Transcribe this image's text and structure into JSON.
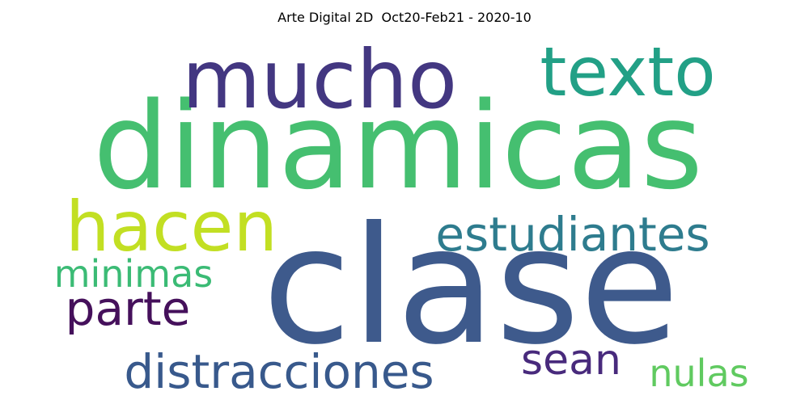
{
  "chart_data": {
    "type": "wordcloud",
    "title": "Arte Digital 2D  Oct20-Feb21 - 2020-10",
    "words": [
      {
        "text": "clase",
        "weight": 1.0,
        "color": "#3e5a8c",
        "orientation": "horizontal"
      },
      {
        "text": "dinamicas",
        "weight": 0.92,
        "color": "#45bf70",
        "orientation": "horizontal"
      },
      {
        "text": "mucho",
        "weight": 0.72,
        "color": "#433781",
        "orientation": "horizontal"
      },
      {
        "text": "texto",
        "weight": 0.64,
        "color": "#22a086",
        "orientation": "horizontal"
      },
      {
        "text": "hacen",
        "weight": 0.56,
        "color": "#c2df23",
        "orientation": "horizontal"
      },
      {
        "text": "estudiantes",
        "weight": 0.38,
        "color": "#2e7c8e",
        "orientation": "horizontal"
      },
      {
        "text": "parte",
        "weight": 0.38,
        "color": "#45105b",
        "orientation": "horizontal"
      },
      {
        "text": "distracciones",
        "weight": 0.37,
        "color": "#38598c",
        "orientation": "horizontal"
      },
      {
        "text": "sean",
        "weight": 0.34,
        "color": "#482a7c",
        "orientation": "horizontal"
      },
      {
        "text": "minimas",
        "weight": 0.3,
        "color": "#3bbb75",
        "orientation": "horizontal"
      },
      {
        "text": "nulas",
        "weight": 0.3,
        "color": "#60ca60",
        "orientation": "horizontal"
      }
    ]
  }
}
